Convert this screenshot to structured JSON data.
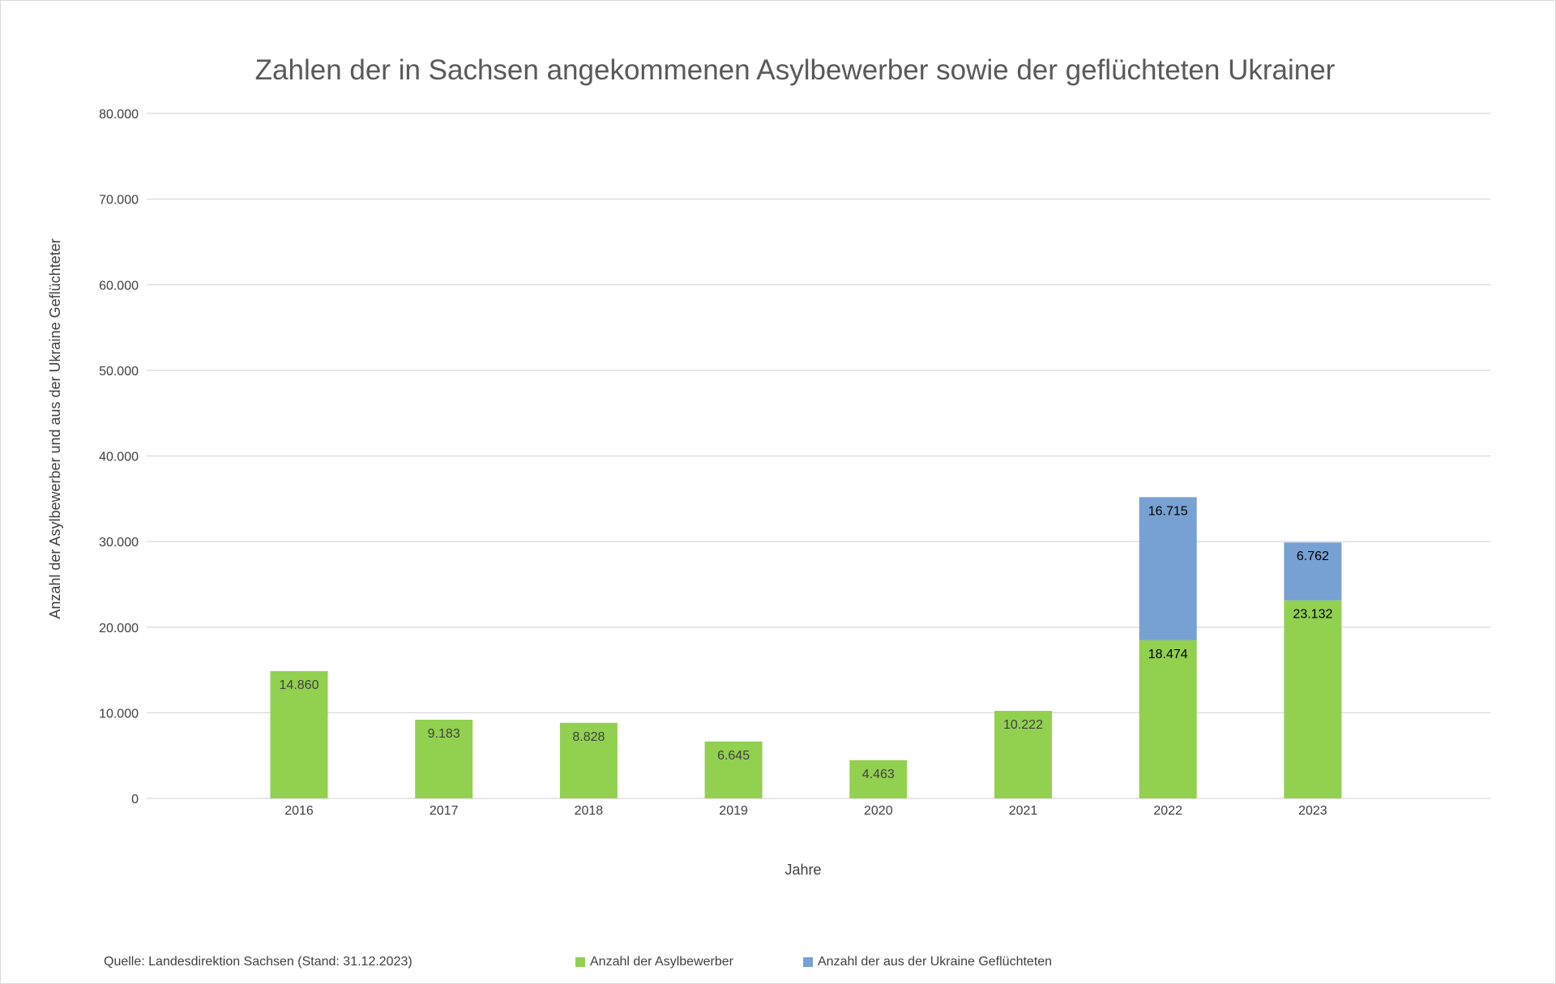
{
  "chart_data": {
    "type": "bar",
    "stacked": true,
    "title": "Zahlen der in Sachsen angekommenen Asylbewerber sowie der geflüchteten Ukrainer",
    "xlabel": "Jahre",
    "ylabel": "Anzahl der Asylbewerber und aus der Ukraine Geflüchteter",
    "ylim": [
      0,
      80000
    ],
    "yticks": [
      0,
      10000,
      20000,
      30000,
      40000,
      50000,
      60000,
      70000,
      80000
    ],
    "ytick_labels": [
      "0",
      "10.000",
      "20.000",
      "30.000",
      "40.000",
      "50.000",
      "60.000",
      "70.000",
      "80.000"
    ],
    "grid": true,
    "legend_position": "bottom",
    "categories": [
      "2016",
      "2017",
      "2018",
      "2019",
      "2020",
      "2021",
      "2022",
      "2023"
    ],
    "series": [
      {
        "name": "Anzahl der Asylbewerber",
        "color": "#92d050",
        "values": [
          14860,
          9183,
          8828,
          6645,
          4463,
          10222,
          18474,
          23132
        ],
        "labels": [
          "14.860",
          "9.183",
          "8.828",
          "6.645",
          "4.463",
          "10.222",
          "18.474",
          "23.132"
        ]
      },
      {
        "name": "Anzahl der aus der Ukraine Geflüchteten",
        "color": "#77a1d2",
        "values": [
          null,
          null,
          null,
          null,
          null,
          null,
          16715,
          6762
        ],
        "labels": [
          "",
          "",
          "",
          "",
          "",
          "",
          "16.715",
          "6.762"
        ]
      }
    ]
  },
  "footer": {
    "source": "Quelle: Landesdirektion Sachsen (Stand: 31.12.2023)"
  }
}
